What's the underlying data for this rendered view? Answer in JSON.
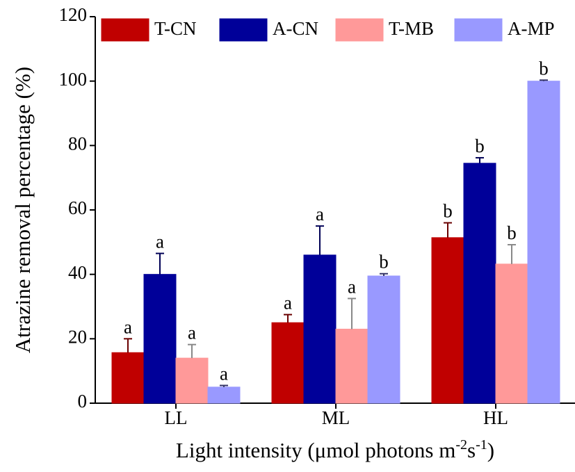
{
  "chart_data": {
    "type": "bar",
    "x_label_parts": [
      "Light intensity (μmol photons m",
      "-2",
      "s",
      "-1",
      ")"
    ],
    "y_label": "Atrazine removal percentage (%)",
    "categories": [
      "LL",
      "ML",
      "HL"
    ],
    "series": [
      {
        "name": "T-CN",
        "color": "#c00000",
        "error_color": "#6a0000",
        "values": [
          15.7,
          25,
          51.4
        ],
        "errors": [
          4.3,
          2.5,
          4.6
        ],
        "letters": [
          "a",
          "a",
          "b"
        ]
      },
      {
        "name": "A-CN",
        "color": "#000099",
        "error_color": "#000055",
        "values": [
          40,
          46,
          74.5
        ],
        "errors": [
          6.5,
          9,
          1.7
        ],
        "letters": [
          "a",
          "a",
          "b"
        ]
      },
      {
        "name": "T-MB",
        "color": "#ff9999",
        "error_color": "#888888",
        "values": [
          14,
          23,
          43.2
        ],
        "errors": [
          4.2,
          9.5,
          6
        ],
        "letters": [
          "a",
          "a",
          "b"
        ]
      },
      {
        "name": "A-MP",
        "color": "#9999ff",
        "error_color": "#333366",
        "values": [
          5,
          39.5,
          100
        ],
        "errors": [
          0.5,
          0.7,
          0.3
        ],
        "letters": [
          "a",
          "b",
          "b"
        ]
      }
    ],
    "ylim": [
      0,
      120
    ],
    "yticks": [
      0,
      20,
      40,
      60,
      80,
      100,
      120
    ],
    "grid": false,
    "legend": "top"
  }
}
